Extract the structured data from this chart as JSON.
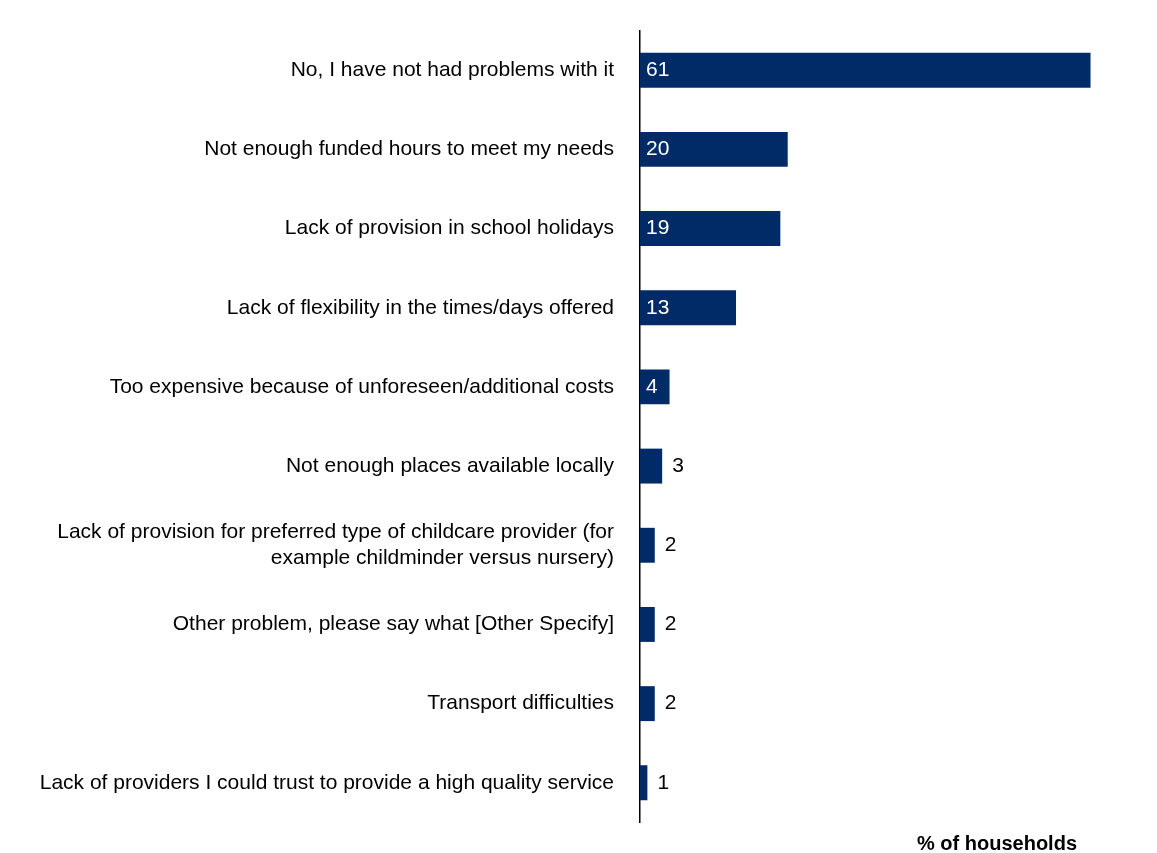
{
  "chart_data": {
    "type": "bar",
    "orientation": "horizontal",
    "xlabel": "% of households",
    "categories": [
      "No, I have not had problems with it",
      "Not enough funded hours to meet my needs",
      "Lack of provision in school holidays",
      "Lack of flexibility in the times/days offered",
      "Too expensive because of unforeseen/additional costs",
      "Not enough places available locally",
      "Lack of provision for preferred type of childcare provider (for example childminder versus nursery)",
      "Other problem, please say what [Other Specify]",
      "Transport difficulties",
      "Lack of providers I could trust to provide a high quality service"
    ],
    "values": [
      61,
      20,
      19,
      13,
      4,
      3,
      2,
      2,
      2,
      1
    ],
    "color": "#002b66",
    "data_labels": true
  }
}
